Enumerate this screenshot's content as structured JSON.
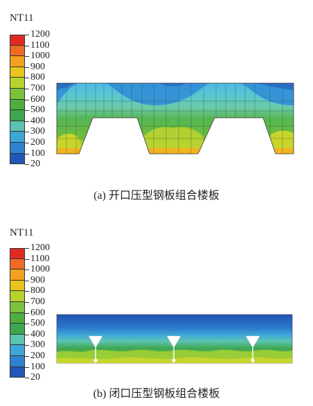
{
  "legend": {
    "variable": "NT11",
    "ticks": [
      "1200",
      "1100",
      "1000",
      "900",
      "800",
      "700",
      "600",
      "500",
      "400",
      "300",
      "200",
      "100",
      "20"
    ],
    "colors": [
      "#e02a22",
      "#ef6a22",
      "#f3a21f",
      "#e8c41c",
      "#b8d22c",
      "#7cc13e",
      "#4fae3f",
      "#3fa650",
      "#5cc3b0",
      "#3ea7d8",
      "#2e82cf",
      "#2356b6"
    ]
  },
  "panel_a": {
    "label": "NT11",
    "caption": "(a) 开口压型钢板组合楼板"
  },
  "panel_b": {
    "label": "NT11",
    "caption": "(b) 闭口压型钢板组合楼板"
  }
}
